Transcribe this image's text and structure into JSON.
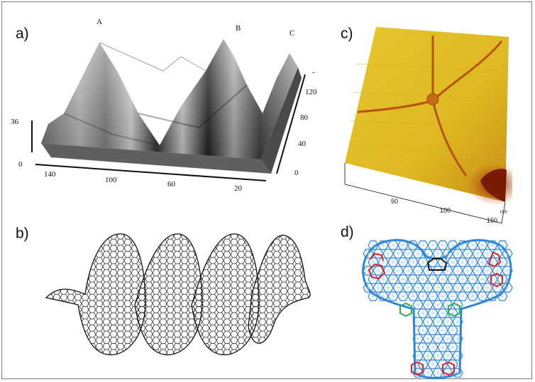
{
  "panels": {
    "a": {
      "label": "a)",
      "peaks": [
        "A",
        "B",
        "C"
      ],
      "z_ticks": [
        "36",
        "0"
      ],
      "x_ticks": [
        "140",
        "100",
        "60",
        "20"
      ],
      "y_ticks": [
        "-",
        "120",
        "80",
        "40",
        "0"
      ]
    },
    "b": {
      "label": "b)"
    },
    "c": {
      "label": "c)",
      "x_ticks": [
        "50",
        "100",
        "150"
      ],
      "unit": "nm",
      "surface_color": "#e3c12a",
      "feature_color": "#b5520c"
    },
    "d": {
      "label": "d)",
      "node_color": "#2f86d6",
      "heptagon_color": "#d9232a",
      "pentagon_color": "#2bb04a",
      "octagon_color": "#111111"
    }
  }
}
